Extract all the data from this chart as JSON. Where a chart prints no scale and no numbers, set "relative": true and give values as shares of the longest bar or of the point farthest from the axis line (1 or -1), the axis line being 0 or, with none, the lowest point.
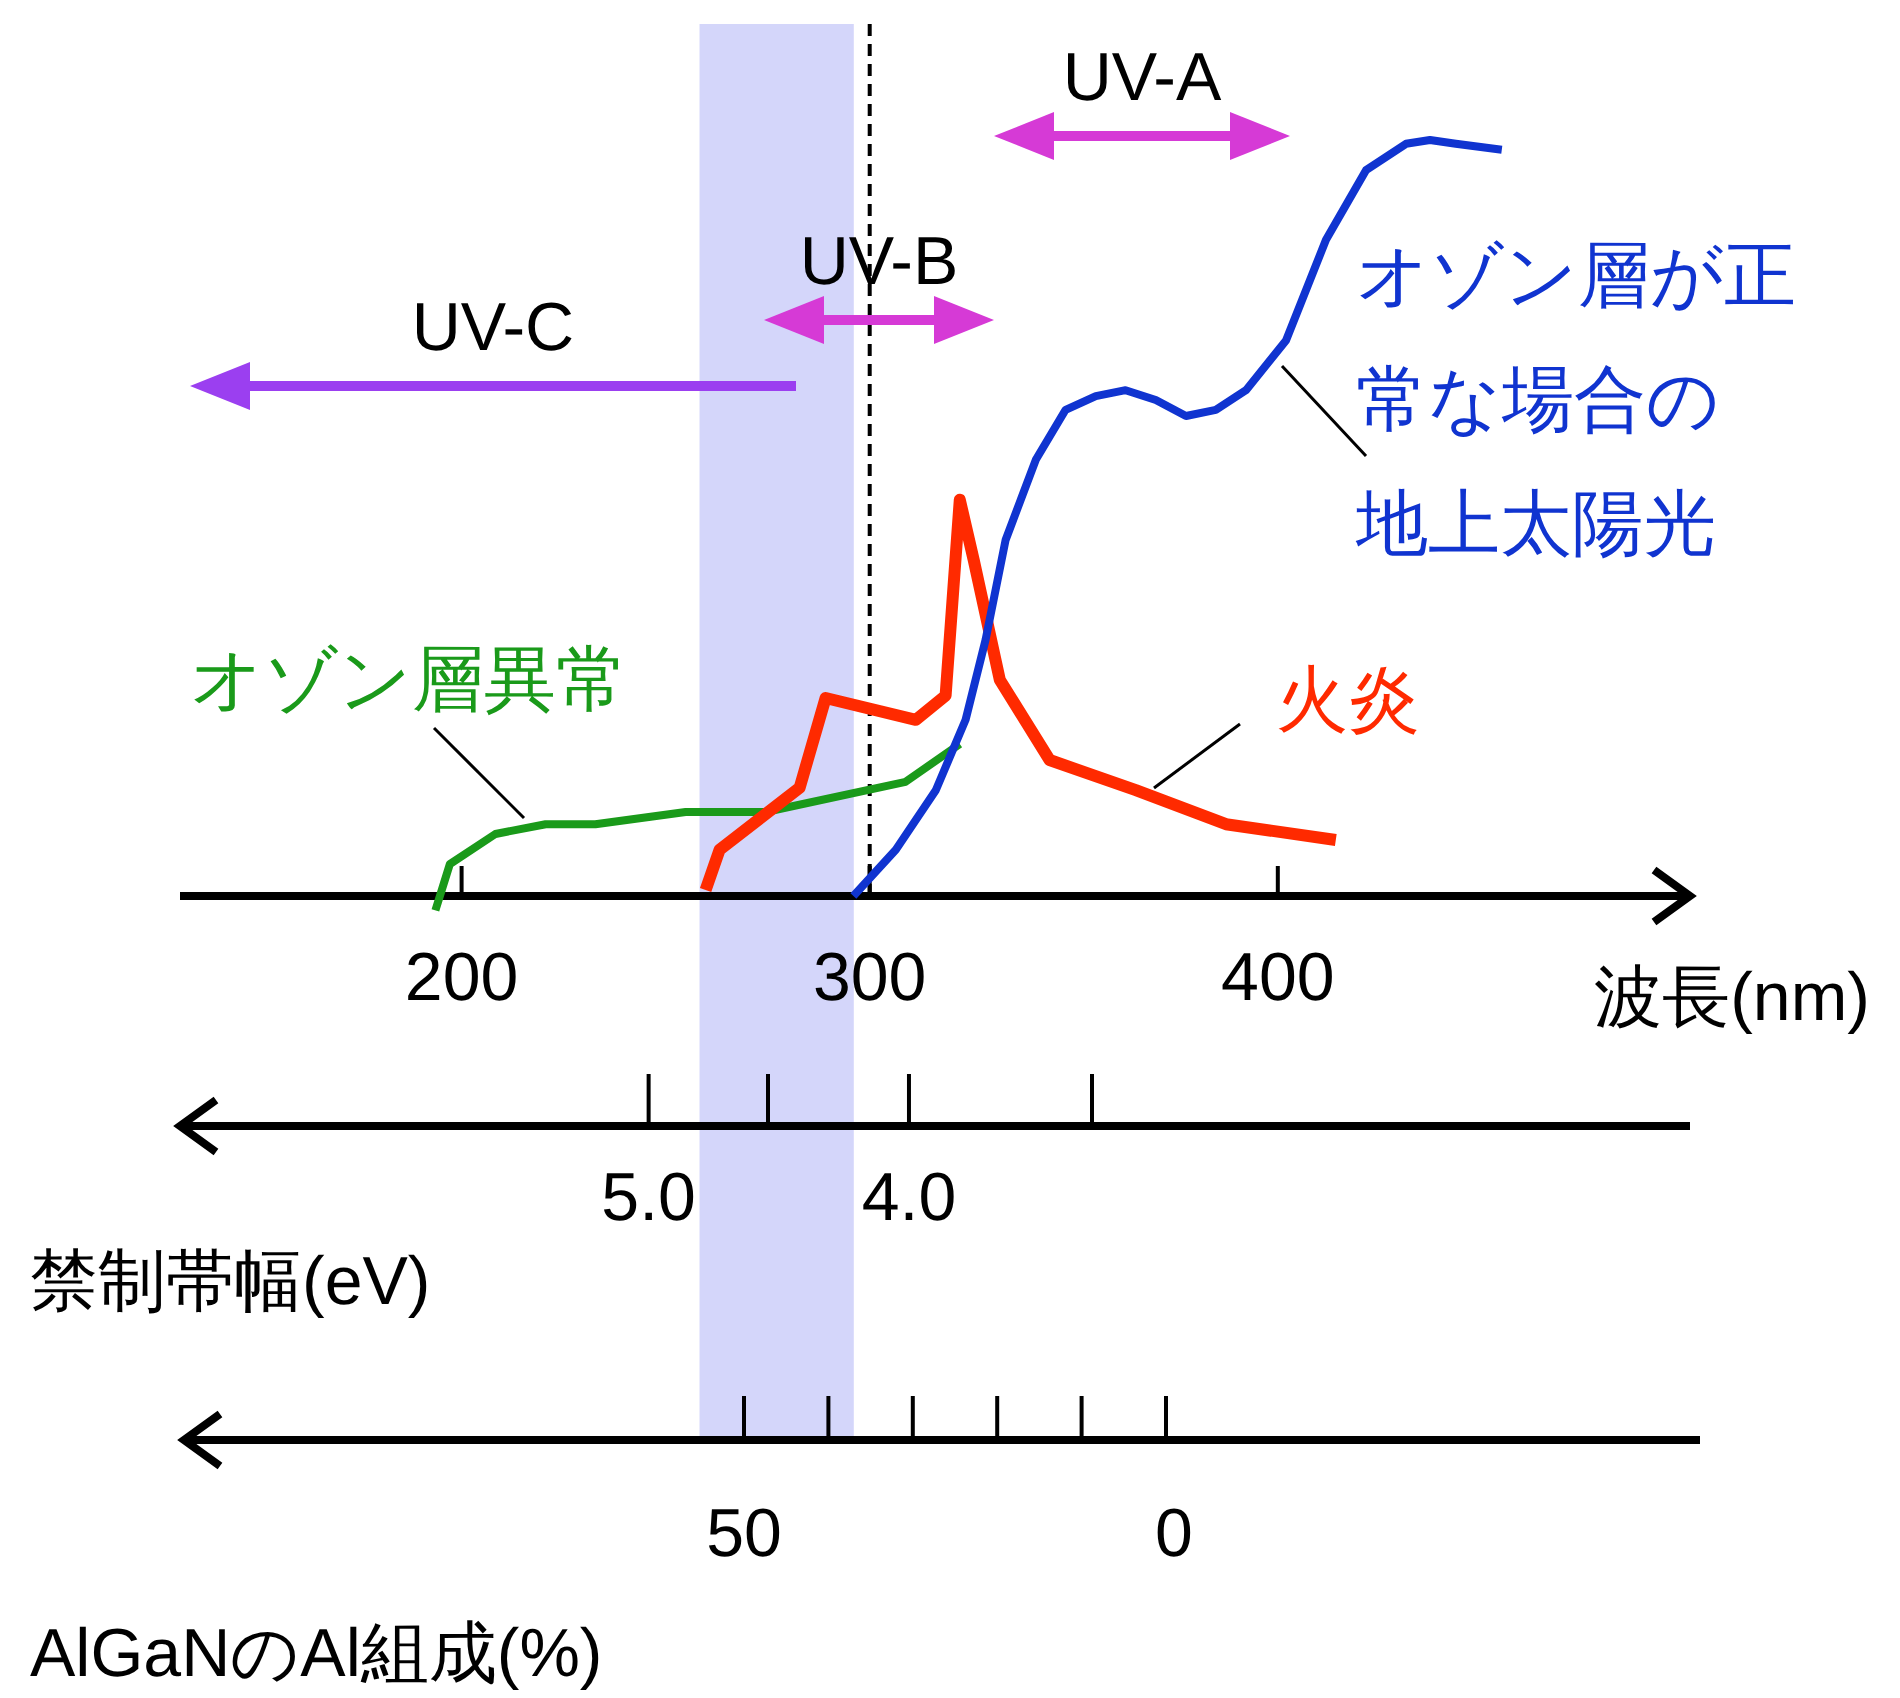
{
  "chart_data": {
    "type": "line",
    "relative": true,
    "legend": false,
    "xlabel": "波長(nm)",
    "xlim": [
      131,
      501
    ],
    "xticks": [
      200,
      300,
      400
    ],
    "x2label": "禁制帯幅(eV)",
    "x2lim": [
      6.8,
      1.0
    ],
    "x2ticks": [
      {
        "value": 5,
        "label": "5.0"
      },
      {
        "value": 4,
        "label": "4.0"
      }
    ],
    "series": [
      {
        "name": "オゾン層異常",
        "color": "#1a9a1a",
        "x": [
          193.6,
          197.1,
          208.3,
          220.6,
          232.8,
          254.9,
          274.5,
          308.8,
          322.1
        ],
        "values": [
          -0.019,
          0.042,
          0.082,
          0.095,
          0.095,
          0.111,
          0.111,
          0.151,
          0.201
        ]
      },
      {
        "name": "火炎",
        "color": "#ff2a00",
        "x": [
          259.8,
          263.2,
          282.8,
          289.2,
          311.3,
          318.6,
          322.1,
          325.5,
          331.9,
          344.1,
          365.2,
          387.3,
          414.2
        ],
        "values": [
          0.008,
          0.061,
          0.143,
          0.262,
          0.233,
          0.265,
          0.524,
          0.444,
          0.286,
          0.18,
          0.14,
          0.095,
          0.074
        ]
      },
      {
        "name": "オゾン層が正常な場合の地上太陽光",
        "color": "#1034d0",
        "x": [
          296,
          306.4,
          316.2,
          323.5,
          328.4,
          333.3,
          340.7,
          348,
          355.4,
          362.7,
          370.1,
          377.5,
          384.8,
          392.2,
          402,
          411.8,
          421.6,
          431.4,
          437.3,
          443.6,
          454.9
        ],
        "values": [
          0,
          0.061,
          0.14,
          0.233,
          0.339,
          0.471,
          0.577,
          0.643,
          0.661,
          0.669,
          0.656,
          0.635,
          0.643,
          0.669,
          0.735,
          0.868,
          0.96,
          0.995,
          1.0,
          0.995,
          0.987
        ]
      }
    ],
    "bands": [
      {
        "axis": "x",
        "from": 258.3,
        "to": 296.1,
        "color": "#d4d6fa"
      }
    ],
    "ref_lines": [
      {
        "axis": "x",
        "value": 300,
        "line_style": "dashed",
        "color": "#000000"
      }
    ],
    "annotations": [
      "UV-C",
      "UV-B",
      "UV-A",
      "50",
      "0",
      "AlGaNのAl組成(%)"
    ]
  }
}
